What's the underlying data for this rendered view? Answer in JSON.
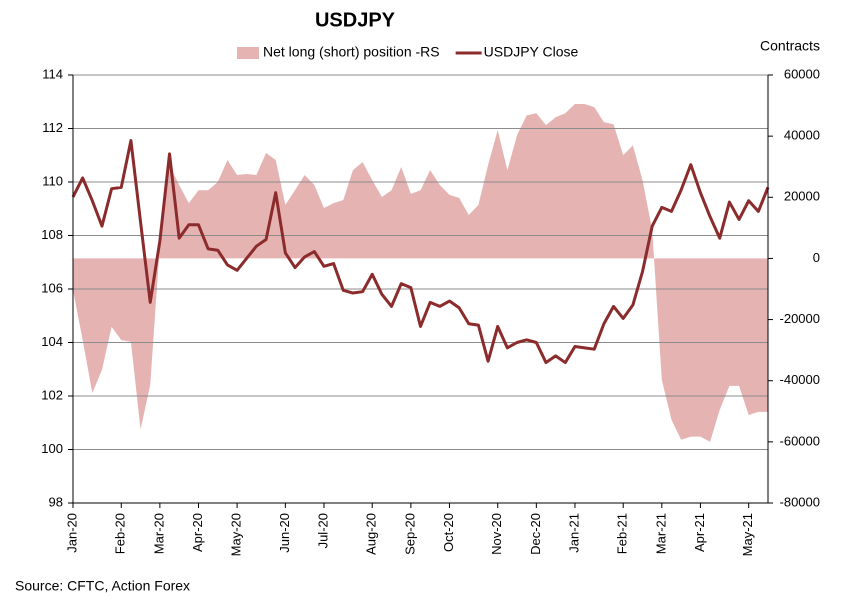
{
  "chart_data": {
    "type": "line",
    "title": "USDJPY",
    "y2_label": "Contracts",
    "source": "Source: CFTC, Action Forex",
    "categories": [
      "Jan-20",
      null,
      null,
      null,
      null,
      "Feb-20",
      null,
      null,
      null,
      "Mar-20",
      null,
      null,
      null,
      "Apr-20",
      null,
      null,
      null,
      "May-20",
      null,
      null,
      null,
      null,
      "Jun-20",
      null,
      null,
      null,
      "Jul-20",
      null,
      null,
      null,
      null,
      "Aug-20",
      null,
      null,
      null,
      "Sep-20",
      null,
      null,
      null,
      "Oct-20",
      null,
      null,
      null,
      null,
      "Nov-20",
      null,
      null,
      null,
      "Dec-20",
      null,
      null,
      null,
      "Jan-21",
      null,
      null,
      null,
      null,
      "Feb-21",
      null,
      null,
      null,
      "Mar-21",
      null,
      null,
      null,
      "Apr-21",
      null,
      null,
      null,
      null,
      "May-21",
      null,
      null
    ],
    "series": [
      {
        "name": "Net long (short) position -RS",
        "style": "area",
        "axis": "y2",
        "color": "#e6b3b3",
        "values": [
          -10300,
          -26700,
          -44000,
          -36500,
          -22400,
          -26700,
          -27300,
          -56000,
          -41300,
          4400,
          30500,
          24000,
          18100,
          22300,
          22300,
          25000,
          32200,
          27300,
          27600,
          27300,
          34500,
          32200,
          17500,
          22300,
          27300,
          24000,
          16500,
          18100,
          19100,
          28900,
          31500,
          25600,
          20100,
          22300,
          29900,
          21100,
          22300,
          28900,
          24000,
          20800,
          19800,
          14200,
          17500,
          30500,
          42000,
          28900,
          40300,
          46800,
          47500,
          43600,
          46200,
          47500,
          50500,
          50500,
          49500,
          44600,
          43900,
          33800,
          37000,
          25600,
          9300,
          -39700,
          -52800,
          -59300,
          -58300,
          -58300,
          -60000,
          -49500,
          -41700,
          -41700,
          -51200,
          -50200,
          -50200
        ]
      },
      {
        "name": "USDJPY Close",
        "style": "line",
        "axis": "y",
        "color": "#8b2b2b",
        "values": [
          109.44,
          110.15,
          109.3,
          108.35,
          109.75,
          109.8,
          111.55,
          108.5,
          105.5,
          107.8,
          111.05,
          107.9,
          108.4,
          108.4,
          107.5,
          107.45,
          106.9,
          106.7,
          107.15,
          107.6,
          107.85,
          109.6,
          107.35,
          106.8,
          107.2,
          107.4,
          106.85,
          106.95,
          105.95,
          105.85,
          105.9,
          106.55,
          105.8,
          105.35,
          106.2,
          106.05,
          104.6,
          105.5,
          105.35,
          105.55,
          105.3,
          104.7,
          104.65,
          103.3,
          104.6,
          103.8,
          104.0,
          104.1,
          104.0,
          103.25,
          103.5,
          103.25,
          103.85,
          103.8,
          103.75,
          104.7,
          105.35,
          104.9,
          105.4,
          106.65,
          108.35,
          109.05,
          108.9,
          109.7,
          110.65,
          109.6,
          108.7,
          107.9,
          109.25,
          108.6,
          109.3,
          108.9,
          109.8
        ]
      }
    ],
    "ylim": [
      98,
      114
    ],
    "yticks": [
      98,
      100,
      102,
      104,
      106,
      108,
      110,
      112,
      114
    ],
    "y2lim": [
      -80000,
      60000
    ],
    "y2ticks": [
      -80000,
      -60000,
      -40000,
      -20000,
      0,
      20000,
      40000,
      60000
    ],
    "grid": true,
    "legend": "top"
  }
}
